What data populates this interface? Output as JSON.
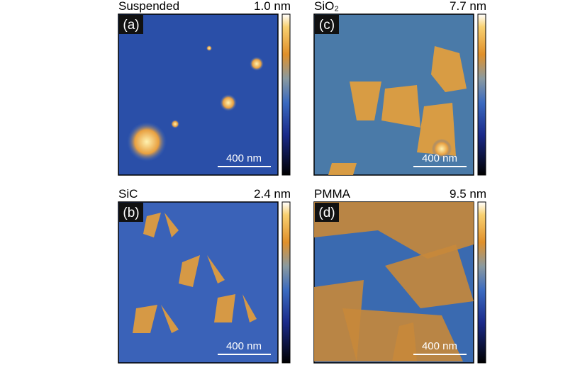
{
  "panels": [
    {
      "label": "(a)",
      "title": "Suspended",
      "range": "1.0 nm",
      "scalebar": "400 nm"
    },
    {
      "label": "(c)",
      "title": "SiO₂",
      "range": "7.7 nm",
      "scalebar": "400 nm"
    },
    {
      "label": "(b)",
      "title": "SiC",
      "range": "2.4 nm",
      "scalebar": "400 nm"
    },
    {
      "label": "(d)",
      "title": "PMMA",
      "range": "9.5 nm",
      "scalebar": "400 nm"
    }
  ]
}
